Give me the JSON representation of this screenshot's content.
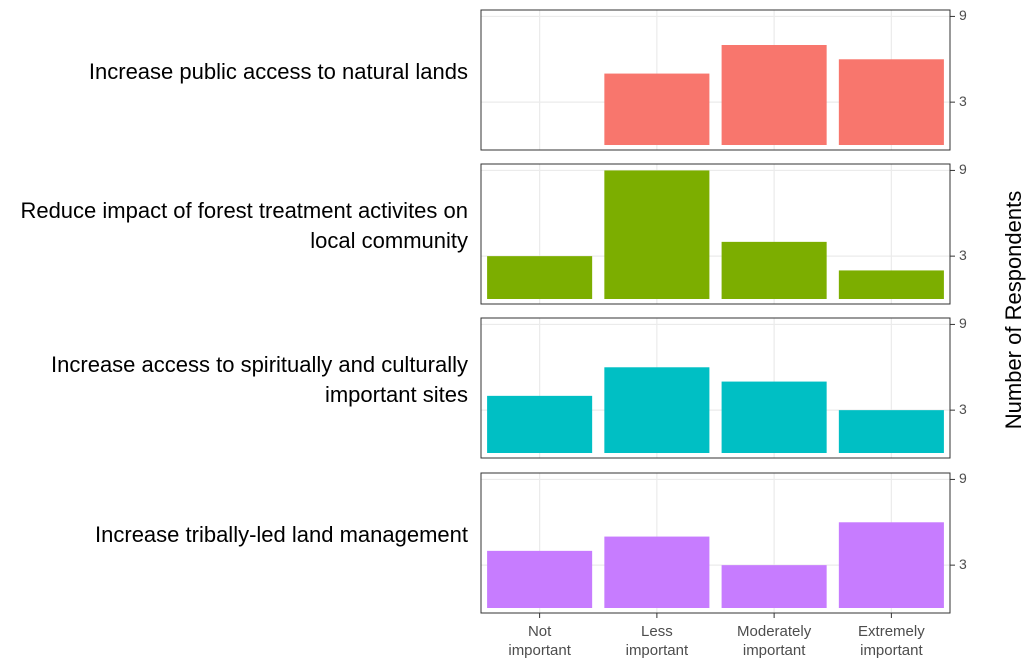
{
  "chart_data": {
    "type": "bar",
    "layout": "facet-rows",
    "y_label": "Number of Respondents",
    "categories": [
      "Not important",
      "Less important",
      "Moderately important",
      "Extremely important"
    ],
    "series": [
      {
        "name": "Increase public access to natural lands",
        "color": "#f8766d",
        "values": [
          0,
          5,
          7,
          6
        ]
      },
      {
        "name": "Reduce impact of forest treatment activites on local community",
        "color": "#7cae00",
        "values": [
          3,
          9,
          4,
          2
        ]
      },
      {
        "name": "Increase access to spiritually and culturally important sites",
        "color": "#00bfc4",
        "values": [
          4,
          6,
          5,
          3
        ]
      },
      {
        "name": "Increase tribally-led land management",
        "color": "#c77cff",
        "values": [
          4,
          5,
          3,
          6
        ]
      }
    ],
    "ylim": [
      -0.35,
      9.45
    ],
    "yticks": [
      3,
      9
    ],
    "grid": true
  }
}
